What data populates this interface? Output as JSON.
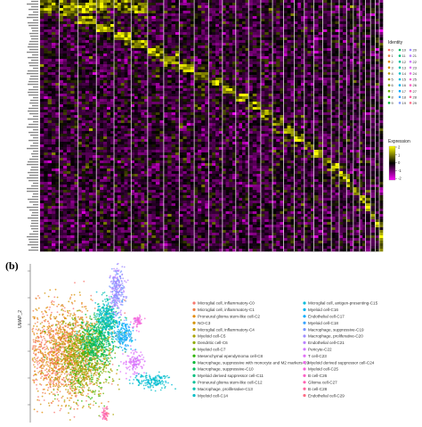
{
  "panel_b_label": "(b)",
  "chart_data": [
    {
      "type": "heatmap",
      "colorbar_title": "Expression",
      "colorbar_ticks": [
        "2",
        "1",
        "0",
        "-1",
        "-2"
      ],
      "colorscale": [
        "#ff00ff",
        "#000000",
        "#ffff00"
      ],
      "legend_title": "Identity",
      "identity_labels": [
        "0",
        "1",
        "2",
        "3",
        "4",
        "5",
        "6",
        "7",
        "8",
        "9",
        "10",
        "11",
        "12",
        "13",
        "14",
        "15",
        "16",
        "17",
        "18",
        "19",
        "20",
        "21",
        "22",
        "23",
        "24",
        "25",
        "26",
        "27",
        "28",
        "29"
      ],
      "cluster_count": 30
    },
    {
      "type": "scatter",
      "ylabel": "UMAP_2",
      "legend": [
        {
          "label": "Microglial cell, inflammatory-C0",
          "color": "#f8766d"
        },
        {
          "label": "Microglial cell, inflammatory-C1",
          "color": "#ef7f46"
        },
        {
          "label": "Proneural glioma stem-like cell-C2",
          "color": "#e38900"
        },
        {
          "label": "NO-C3",
          "color": "#d39200"
        },
        {
          "label": "Microglial cell, inflammatory-C4",
          "color": "#c09b00"
        },
        {
          "label": "Myeloid cell-C5",
          "color": "#a9a400"
        },
        {
          "label": "Dendritic cell-C6",
          "color": "#8fab00"
        },
        {
          "label": "Myeloid cell-C7",
          "color": "#6bb100"
        },
        {
          "label": "Mesenchymal ependymoma cell-C8",
          "color": "#2bb600"
        },
        {
          "label": "Macrophage, suppressive with monocyte and M2 markers-C9",
          "color": "#00ba38"
        },
        {
          "label": "Macrophage, suppressive-C10",
          "color": "#00bd5f"
        },
        {
          "label": "Myeloid derived suppressor cell-C11",
          "color": "#00bf7d"
        },
        {
          "label": "Proneural glioma stem-like cell-C12",
          "color": "#00c097"
        },
        {
          "label": "Macrophage, proliferative-C13",
          "color": "#00c0af"
        },
        {
          "label": "Myeloid cell-C14",
          "color": "#00bec6"
        },
        {
          "label": "Microglial cell, antigen-presenting-C15",
          "color": "#00bbda"
        },
        {
          "label": "Myeloid cell-C16",
          "color": "#00b4ef"
        },
        {
          "label": "Endothelial cell-C17",
          "color": "#00abfd"
        },
        {
          "label": "Myeloid cell-C18",
          "color": "#35a2ff"
        },
        {
          "label": "Macrophage, suppressive-C19",
          "color": "#7997ff"
        },
        {
          "label": "Macrophage, proliferative-C20",
          "color": "#9f8cff"
        },
        {
          "label": "Endothelial cell-C21",
          "color": "#bb81ff"
        },
        {
          "label": "Pericyte-C22",
          "color": "#d078ff"
        },
        {
          "label": "T cell-C23",
          "color": "#e16ff7"
        },
        {
          "label": "Myeloid derived suppressor cell-C24",
          "color": "#ed68ea"
        },
        {
          "label": "Myeloid cell-C25",
          "color": "#f564d8"
        },
        {
          "label": "B cell-C26",
          "color": "#fb61c6"
        },
        {
          "label": "Glioma cell-C27",
          "color": "#ff61b2"
        },
        {
          "label": "B cell-C28",
          "color": "#ff659c"
        },
        {
          "label": "Endothelial cell-C29",
          "color": "#fd6c86"
        }
      ]
    }
  ]
}
